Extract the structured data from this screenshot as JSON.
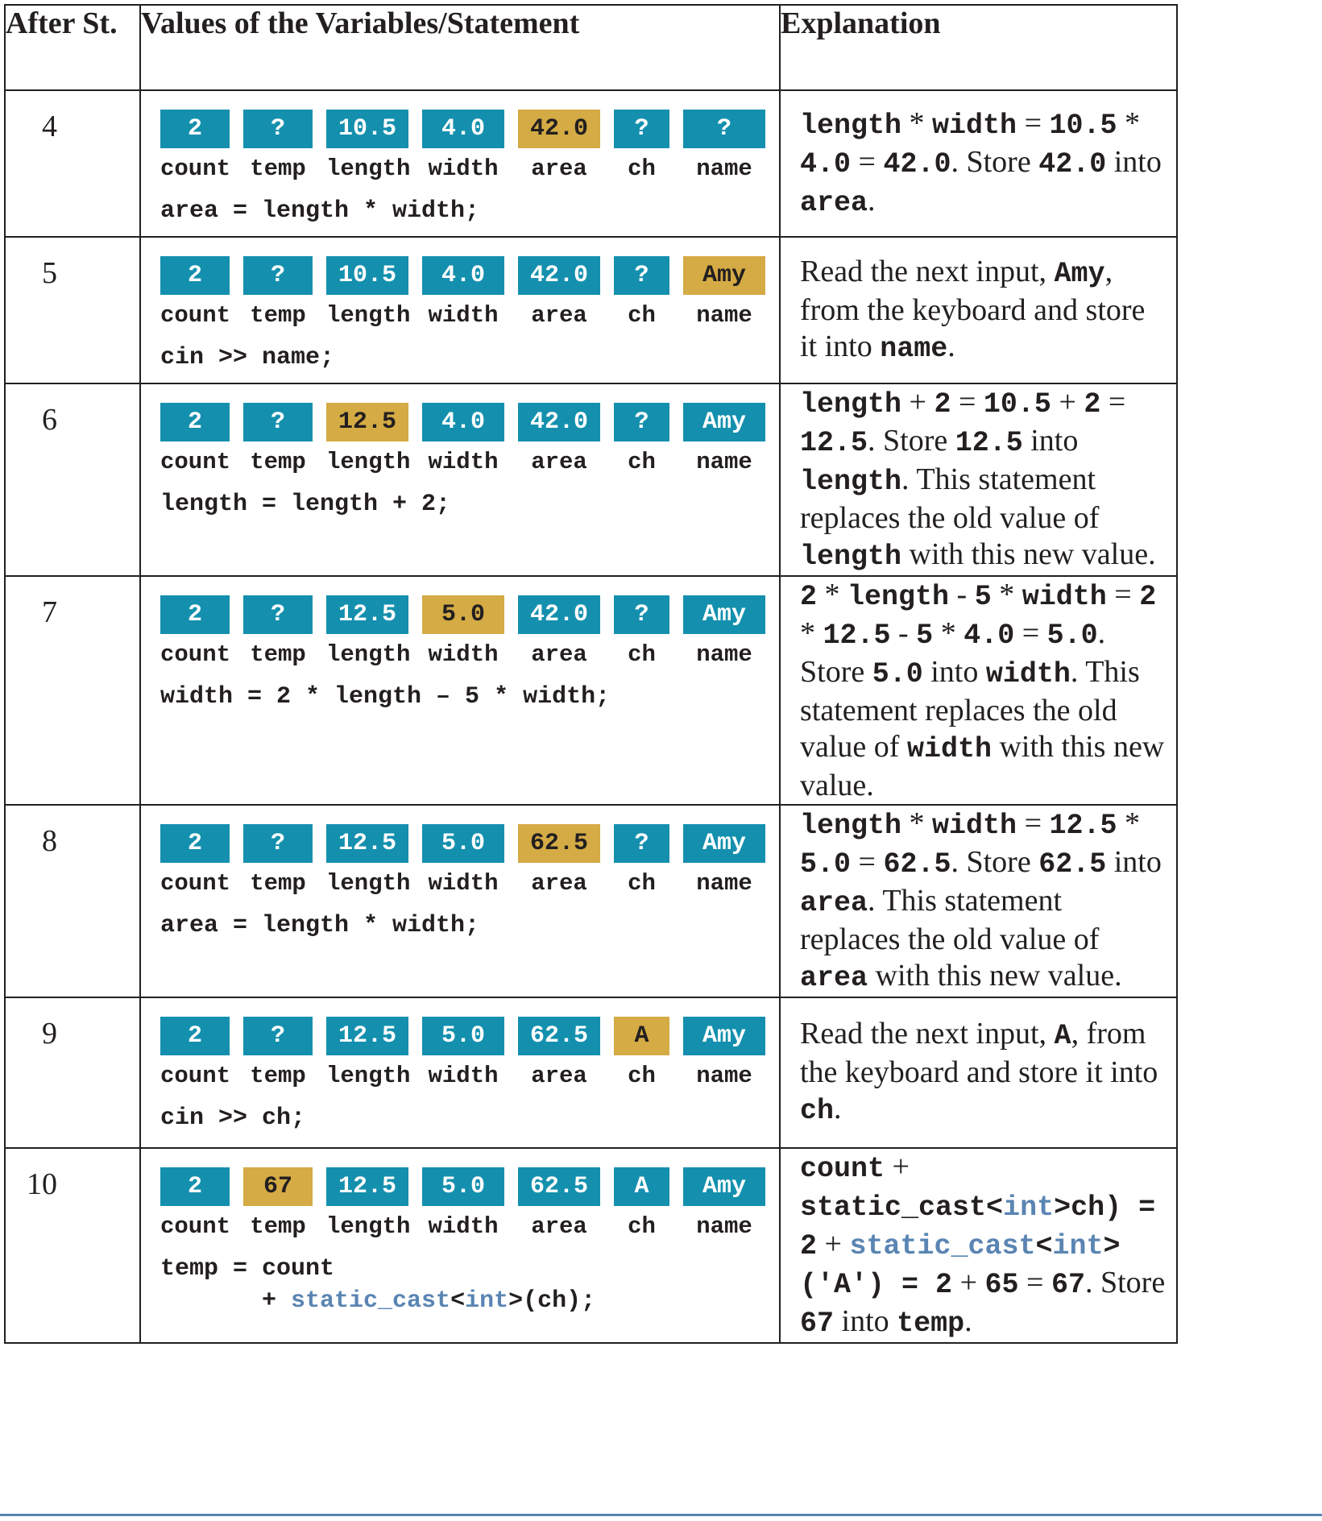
{
  "headers": {
    "step": "After St.",
    "values": "Values of the Variables/Statement",
    "explanation": "Explanation"
  },
  "var_labels": [
    "count",
    "temp",
    "length",
    "width",
    "area",
    "ch",
    "name"
  ],
  "colors": {
    "teal": "#1490ae",
    "gold": "#d4ab44",
    "keyword_blue": "#5a85b3"
  },
  "rows": [
    {
      "step": "4",
      "values": [
        "2",
        "?",
        "10.5",
        "4.0",
        "42.0",
        "?",
        "?"
      ],
      "highlight_index": 4,
      "statement": "area = length * width;",
      "explanation": [
        {
          "t": "length",
          "c": 1
        },
        {
          "t": " * ",
          "c": 0
        },
        {
          "t": "width",
          "c": 1
        },
        {
          "t": " = ",
          "c": 0
        },
        {
          "t": "10.5",
          "c": 1
        },
        {
          "t": " * ",
          "c": 0
        },
        {
          "t": "4.0",
          "c": 1
        },
        {
          "t": " = ",
          "c": 0
        },
        {
          "t": "42.0",
          "c": 1
        },
        {
          "t": ". Store ",
          "c": 0
        },
        {
          "t": "42.0",
          "c": 1
        },
        {
          "t": " into ",
          "c": 0
        },
        {
          "t": "area",
          "c": 1
        },
        {
          "t": ".",
          "c": 0
        }
      ]
    },
    {
      "step": "5",
      "values": [
        "2",
        "?",
        "10.5",
        "4.0",
        "42.0",
        "?",
        "Amy"
      ],
      "highlight_index": 6,
      "statement": "cin >> name;",
      "explanation": [
        {
          "t": "Read the next input, ",
          "c": 0
        },
        {
          "t": "Amy",
          "c": 1
        },
        {
          "t": ", from the keyboard and store it into ",
          "c": 0
        },
        {
          "t": "name",
          "c": 1
        },
        {
          "t": ".",
          "c": 0
        }
      ]
    },
    {
      "step": "6",
      "values": [
        "2",
        "?",
        "12.5",
        "4.0",
        "42.0",
        "?",
        "Amy"
      ],
      "highlight_index": 2,
      "statement": "length = length + 2;",
      "explanation": [
        {
          "t": "length",
          "c": 1
        },
        {
          "t": " + ",
          "c": 0
        },
        {
          "t": "2",
          "c": 1
        },
        {
          "t": " = ",
          "c": 0
        },
        {
          "t": "10.5",
          "c": 1
        },
        {
          "t": " + ",
          "c": 0
        },
        {
          "t": "2",
          "c": 1
        },
        {
          "t": " = ",
          "c": 0
        },
        {
          "t": "12.5",
          "c": 1
        },
        {
          "t": ". Store  ",
          "c": 0
        },
        {
          "t": "12.5",
          "c": 1
        },
        {
          "t": " into ",
          "c": 0
        },
        {
          "t": "length",
          "c": 1
        },
        {
          "t": ". This statement replaces the old value of ",
          "c": 0
        },
        {
          "t": "length",
          "c": 1
        },
        {
          "t": " with this new value.",
          "c": 0
        }
      ]
    },
    {
      "step": "7",
      "values": [
        "2",
        "?",
        "12.5",
        "5.0",
        "42.0",
        "?",
        "Amy"
      ],
      "highlight_index": 3,
      "statement": "width = 2 * length – 5 * width;",
      "explanation": [
        {
          "t": "2",
          "c": 1
        },
        {
          "t": " * ",
          "c": 0
        },
        {
          "t": "length",
          "c": 1
        },
        {
          "t": " - ",
          "c": 0
        },
        {
          "t": "5",
          "c": 1
        },
        {
          "t": " * ",
          "c": 0
        },
        {
          "t": "width",
          "c": 1
        },
        {
          "t": " = ",
          "c": 0
        },
        {
          "t": "2",
          "c": 1
        },
        {
          "t": " * ",
          "c": 0
        },
        {
          "t": "12.5",
          "c": 1
        },
        {
          "t": " - ",
          "c": 0
        },
        {
          "t": "5",
          "c": 1
        },
        {
          "t": " * ",
          "c": 0
        },
        {
          "t": "4.0",
          "c": 1
        },
        {
          "t": " = ",
          "c": 0
        },
        {
          "t": "5.0",
          "c": 1
        },
        {
          "t": ". ",
          "c": 0
        },
        {
          "t": "Store ",
          "c": 0
        },
        {
          "t": "5.0",
          "c": 1
        },
        {
          "t": " into ",
          "c": 0
        },
        {
          "t": "width",
          "c": 1
        },
        {
          "t": ". This statement replaces the old value of ",
          "c": 0
        },
        {
          "t": "width",
          "c": 1
        },
        {
          "t": " with this new value.",
          "c": 0
        }
      ]
    },
    {
      "step": "8",
      "values": [
        "2",
        "?",
        "12.5",
        "5.0",
        "62.5",
        "?",
        "Amy"
      ],
      "highlight_index": 4,
      "statement": "area = length * width;",
      "explanation": [
        {
          "t": "length",
          "c": 1
        },
        {
          "t": " * ",
          "c": 0
        },
        {
          "t": "width",
          "c": 1
        },
        {
          "t": " = ",
          "c": 0
        },
        {
          "t": "12.5",
          "c": 1
        },
        {
          "t": " * ",
          "c": 0
        },
        {
          "t": "5.0",
          "c": 1
        },
        {
          "t": " = ",
          "c": 0
        },
        {
          "t": "62.5",
          "c": 1
        },
        {
          "t": ". Store ",
          "c": 0
        },
        {
          "t": "62.5",
          "c": 1
        },
        {
          "t": " into ",
          "c": 0
        },
        {
          "t": "area",
          "c": 1
        },
        {
          "t": ". This statement replaces the old value of ",
          "c": 0
        },
        {
          "t": "area",
          "c": 1
        },
        {
          "t": " with this new value.",
          "c": 0
        }
      ]
    },
    {
      "step": "9",
      "values": [
        "2",
        "?",
        "12.5",
        "5.0",
        "62.5",
        "A",
        "Amy"
      ],
      "highlight_index": 5,
      "statement": "cin >> ch;",
      "explanation": [
        {
          "t": "Read the next input, ",
          "c": 0
        },
        {
          "t": "A",
          "c": 1
        },
        {
          "t": ", from the keyboard and store it into ",
          "c": 0
        },
        {
          "t": "ch",
          "c": 1
        },
        {
          "t": ".",
          "c": 0
        }
      ]
    },
    {
      "step": "10",
      "values": [
        "2",
        "67",
        "12.5",
        "5.0",
        "62.5",
        "A",
        "Amy"
      ],
      "highlight_index": 1,
      "statement": "temp = count",
      "statement_line2_prefix": "       + ",
      "statement_line2_kw": "static_cast",
      "statement_line2_lt": "<",
      "statement_line2_kw2": "int",
      "statement_line2_rest": ">(ch);",
      "explanation": [
        {
          "t": "count",
          "c": 1
        },
        {
          "t": " + ",
          "c": 0
        },
        {
          "t": "static_cast",
          "c": 1
        },
        {
          "t": "<",
          "c": 1
        },
        {
          "t": "int",
          "c": 2
        },
        {
          "t": ">",
          "c": 1
        },
        {
          "t": "ch)",
          "c": 1
        },
        {
          "t": " = ",
          "c": 1
        },
        {
          "t": " 2",
          "c": 1
        },
        {
          "t": " + ",
          "c": 0
        },
        {
          "t": "static_cast",
          "c": 2
        },
        {
          "t": "<",
          "c": 1
        },
        {
          "t": "int",
          "c": 2
        },
        {
          "t": ">",
          "c": 1
        },
        {
          "t": "('A')",
          "c": 1
        },
        {
          "t": " = ",
          "c": 1
        },
        {
          "t": "2",
          "c": 1
        },
        {
          "t": " + ",
          "c": 0
        },
        {
          "t": "65",
          "c": 1
        },
        {
          "t": " = ",
          "c": 0
        },
        {
          "t": "67",
          "c": 1
        },
        {
          "t": ". Store ",
          "c": 0
        },
        {
          "t": "67",
          "c": 1
        },
        {
          "t": " into ",
          "c": 0
        },
        {
          "t": "temp",
          "c": 1
        },
        {
          "t": ".",
          "c": 0
        }
      ]
    }
  ]
}
